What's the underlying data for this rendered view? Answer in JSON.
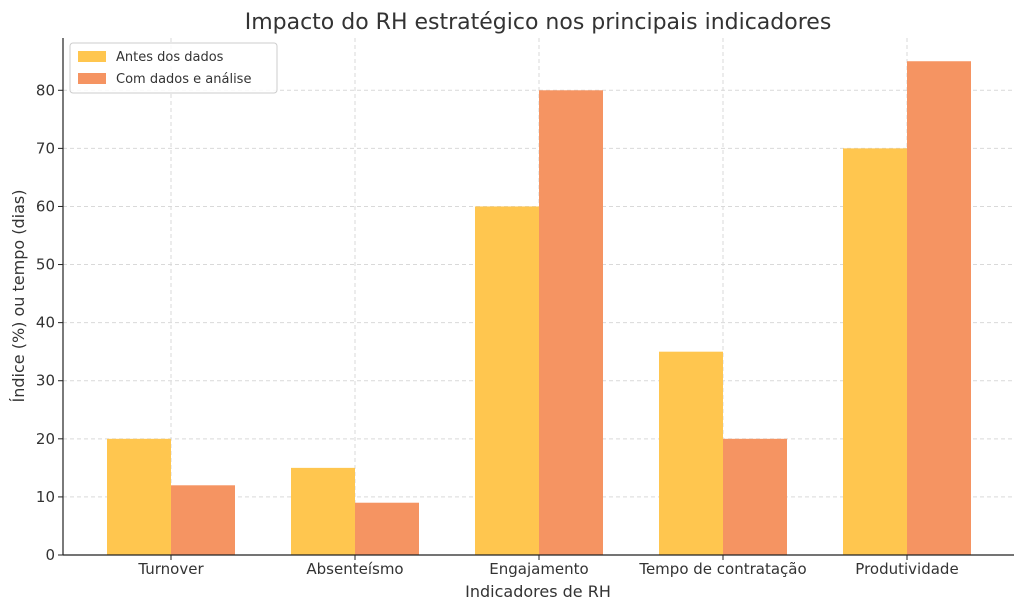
{
  "chart_data": {
    "type": "bar",
    "title": "Impacto do RH estratégico nos principais indicadores",
    "xlabel": "Indicadores de RH",
    "ylabel": "Índice (%) ou tempo (dias)",
    "categories": [
      "Turnover",
      "Absenteísmo",
      "Engajamento",
      "Tempo de contratação",
      "Produtividade"
    ],
    "series": [
      {
        "name": "Antes dos dados",
        "values": [
          20,
          15,
          60,
          35,
          70
        ],
        "color": "#ffc64f"
      },
      {
        "name": "Com dados e análise",
        "values": [
          12,
          9,
          80,
          20,
          85
        ],
        "color": "#f59462"
      }
    ],
    "ylim": [
      0,
      89
    ],
    "yticks": [
      0,
      10,
      20,
      30,
      40,
      50,
      60,
      70,
      80
    ],
    "grid": true,
    "legend_position": "top-left"
  }
}
